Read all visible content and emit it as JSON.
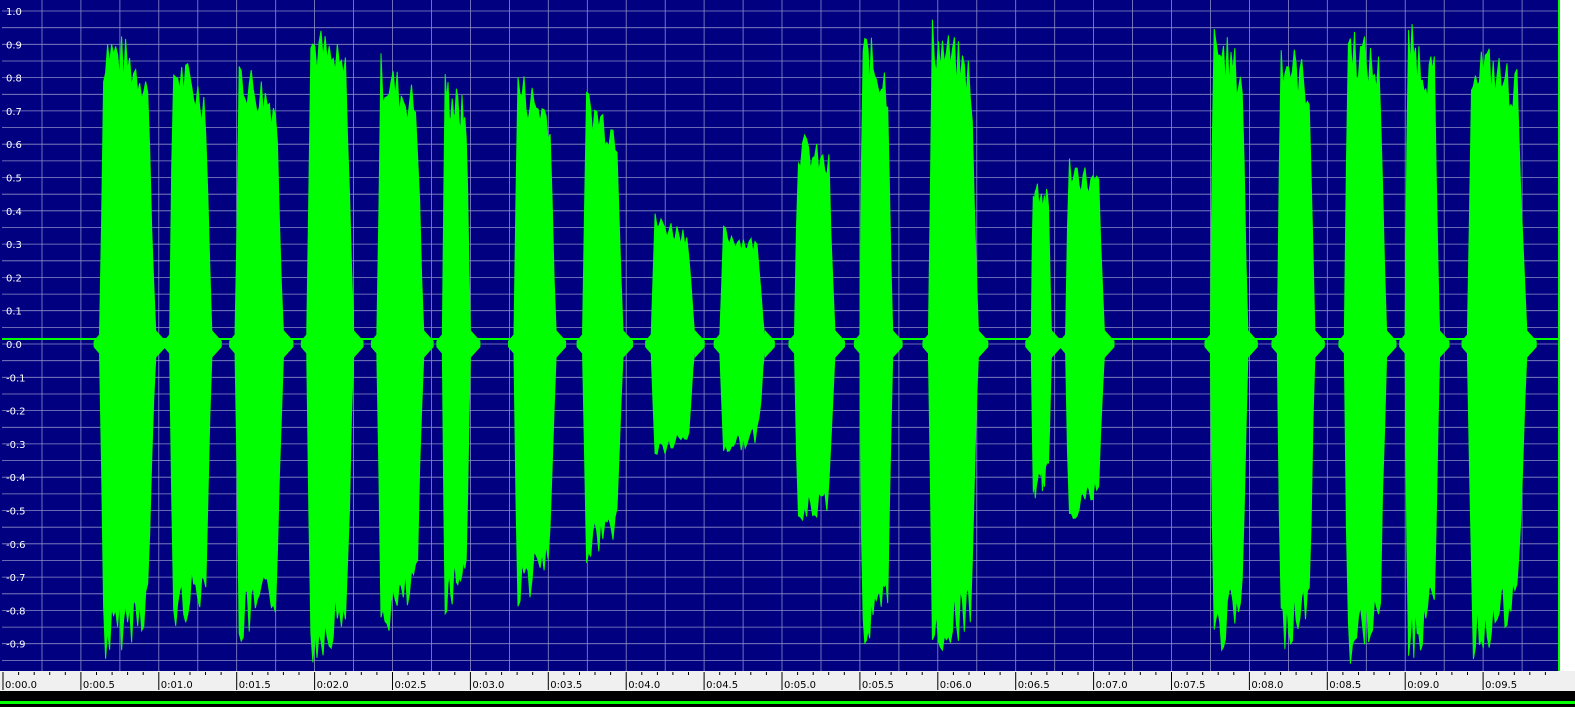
{
  "colors": {
    "background": "#000080",
    "grid": "#8c8cc8",
    "waveform": "#00ff00",
    "axis_text": "#ffffff",
    "ruler_background": "#f0f0f0",
    "ruler_text": "#000000",
    "status_bar": "#000000",
    "scrollbar": "#00ff00"
  },
  "chart_data": {
    "type": "area",
    "title": "",
    "xlabel": "",
    "ylabel": "",
    "ylim": [
      -1.0,
      1.0
    ],
    "xlim_seconds": [
      0.0,
      9.97
    ],
    "grid": true,
    "y_ticks": [
      "1.0",
      "0.9",
      "0.8",
      "0.7",
      "0.6",
      "0.5",
      "0.4",
      "0.3",
      "0.2",
      "0.1",
      "0.0",
      "-0.1",
      "-0.2",
      "-0.3",
      "-0.4",
      "-0.5",
      "-0.6",
      "-0.7",
      "-0.8",
      "-0.9"
    ],
    "x_ticks": [
      "0:00.0",
      "0:00.5",
      "0:01.0",
      "0:01.5",
      "0:02.0",
      "0:02.5",
      "0:03.0",
      "0:03.5",
      "0:04.0",
      "0:04.5",
      "0:05.0",
      "0:05.5",
      "0:06.0",
      "0:06.5",
      "0:07.0",
      "0:07.5",
      "0:08.0",
      "0:08.5",
      "0:09.0",
      "0:09.5"
    ],
    "series": [
      {
        "segments": [
          {
            "start": 0.62,
            "end": 0.98,
            "max": 0.98,
            "min": -0.97
          },
          {
            "start": 1.07,
            "end": 1.34,
            "max": 0.9,
            "min": -0.88
          },
          {
            "start": 1.49,
            "end": 1.8,
            "max": 0.88,
            "min": -0.92
          },
          {
            "start": 1.95,
            "end": 2.25,
            "max": 0.99,
            "min": -0.98
          },
          {
            "start": 2.4,
            "end": 2.7,
            "max": 0.88,
            "min": -0.9
          },
          {
            "start": 2.82,
            "end": 3.0,
            "max": 0.83,
            "min": -0.82
          },
          {
            "start": 3.28,
            "end": 3.55,
            "max": 0.84,
            "min": -0.8
          },
          {
            "start": 3.72,
            "end": 3.98,
            "max": 0.78,
            "min": -0.66
          },
          {
            "start": 4.16,
            "end": 4.44,
            "max": 0.4,
            "min": -0.35
          },
          {
            "start": 4.6,
            "end": 4.89,
            "max": 0.36,
            "min": -0.34
          },
          {
            "start": 5.08,
            "end": 5.34,
            "max": 0.65,
            "min": -0.57
          },
          {
            "start": 5.5,
            "end": 5.71,
            "max": 0.96,
            "min": -0.95
          },
          {
            "start": 5.94,
            "end": 6.26,
            "max": 0.99,
            "min": -0.97
          },
          {
            "start": 6.6,
            "end": 6.73,
            "max": 0.52,
            "min": -0.48
          },
          {
            "start": 6.82,
            "end": 7.07,
            "max": 0.58,
            "min": -0.54
          },
          {
            "start": 7.75,
            "end": 7.99,
            "max": 0.98,
            "min": -0.96
          },
          {
            "start": 8.18,
            "end": 8.42,
            "max": 0.95,
            "min": -0.94
          },
          {
            "start": 8.61,
            "end": 8.88,
            "max": 0.99,
            "min": -0.98
          },
          {
            "start": 9.0,
            "end": 9.22,
            "max": 0.98,
            "min": -0.98
          },
          {
            "start": 9.4,
            "end": 9.78,
            "max": 0.94,
            "min": -0.96
          }
        ]
      }
    ]
  }
}
